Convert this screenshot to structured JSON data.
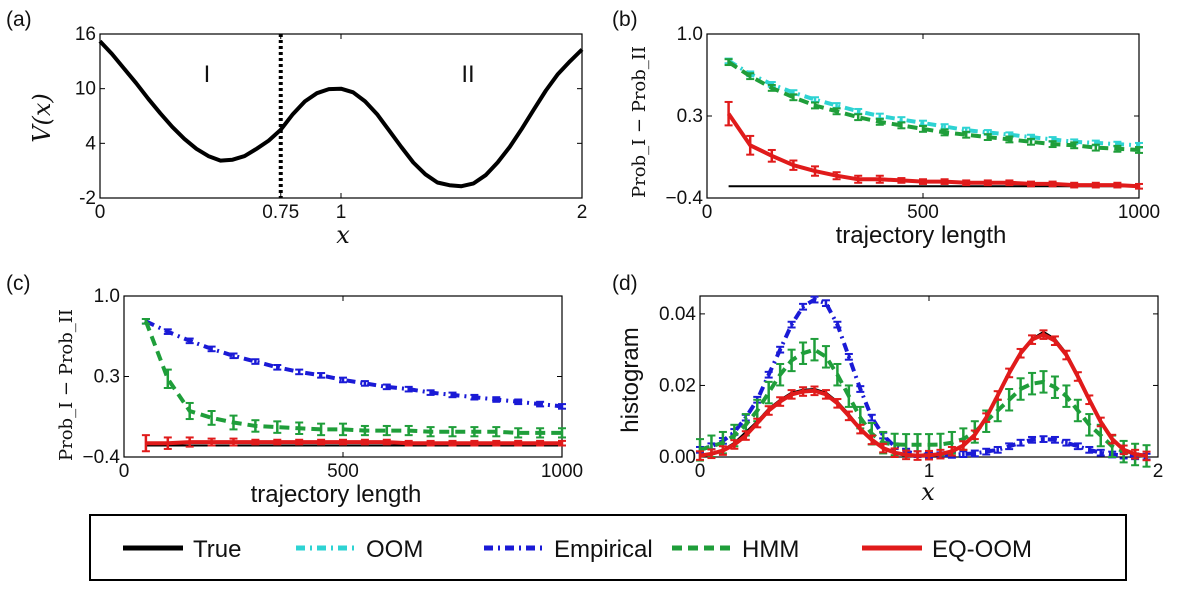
{
  "legend": {
    "entries": [
      {
        "label": "True",
        "color": "#000000",
        "dash": "solid"
      },
      {
        "label": "OOM",
        "color": "#2ed3d3",
        "dash": "dashdot"
      },
      {
        "label": "Empirical",
        "color": "#1a1ad6",
        "dash": "dashdot"
      },
      {
        "label": "HMM",
        "color": "#1f9e3a",
        "dash": "dashed"
      },
      {
        "label": "EQ-OOM",
        "color": "#e01b1b",
        "dash": "solid"
      }
    ]
  },
  "chart_data": [
    {
      "panel": "(a)",
      "type": "line",
      "xlabel": "x",
      "ylabel": "V(x)",
      "xlim": [
        0,
        2
      ],
      "ylim": [
        -2,
        16
      ],
      "xticks": [
        "0",
        "0.75",
        "1",
        "2"
      ],
      "xtick_values": [
        0,
        0.75,
        1,
        2
      ],
      "yticks": [
        "-2",
        "4",
        "10",
        "16"
      ],
      "ytick_values": [
        -2,
        4,
        10,
        16
      ],
      "annotations": [
        "I",
        "II"
      ],
      "divider_x": 0.75,
      "series": [
        {
          "color": "#000000",
          "x": [
            0,
            0.05,
            0.1,
            0.15,
            0.2,
            0.25,
            0.3,
            0.35,
            0.4,
            0.45,
            0.5,
            0.55,
            0.6,
            0.65,
            0.7,
            0.75,
            0.8,
            0.85,
            0.9,
            0.95,
            1.0,
            1.05,
            1.1,
            1.15,
            1.2,
            1.25,
            1.3,
            1.35,
            1.4,
            1.45,
            1.5,
            1.55,
            1.6,
            1.65,
            1.7,
            1.75,
            1.8,
            1.85,
            1.9,
            1.95,
            2.0
          ],
          "y": [
            15.2,
            13.8,
            12.2,
            10.6,
            8.9,
            7.3,
            5.8,
            4.5,
            3.4,
            2.6,
            2.1,
            2.2,
            2.6,
            3.4,
            4.3,
            5.5,
            7.2,
            8.6,
            9.5,
            9.95,
            10.0,
            9.6,
            8.6,
            7.2,
            5.4,
            3.6,
            1.9,
            0.6,
            -0.3,
            -0.6,
            -0.7,
            -0.4,
            0.5,
            1.9,
            3.6,
            5.6,
            7.7,
            9.8,
            11.6,
            13.0,
            14.3
          ]
        }
      ]
    },
    {
      "panel": "(b)",
      "type": "line",
      "xlabel": "trajectory length",
      "ylabel": "Prob_I − Prob_II",
      "xlim": [
        0,
        1000
      ],
      "ylim": [
        -0.4,
        1.0
      ],
      "xticks": [
        "0",
        "500",
        "1000"
      ],
      "xtick_values": [
        0,
        500,
        1000
      ],
      "yticks": [
        "−0.4",
        "0.3",
        "1.0"
      ],
      "ytick_values": [
        -0.4,
        0.3,
        1.0
      ],
      "series": [
        {
          "name": "True",
          "color": "#000000",
          "x": [
            50,
            1000
          ],
          "y": [
            -0.3,
            -0.3
          ]
        },
        {
          "name": "OOM",
          "color": "#2ed3d3",
          "x": [
            50,
            100,
            150,
            200,
            250,
            300,
            350,
            400,
            450,
            500,
            550,
            600,
            650,
            700,
            750,
            800,
            850,
            900,
            950,
            1000
          ],
          "y": [
            0.77,
            0.66,
            0.57,
            0.5,
            0.44,
            0.39,
            0.34,
            0.3,
            0.27,
            0.24,
            0.21,
            0.18,
            0.16,
            0.14,
            0.12,
            0.1,
            0.08,
            0.07,
            0.06,
            0.05
          ],
          "err": 0.02
        },
        {
          "name": "HMM",
          "color": "#1f9e3a",
          "x": [
            50,
            100,
            150,
            200,
            250,
            300,
            350,
            400,
            450,
            500,
            550,
            600,
            650,
            700,
            750,
            800,
            850,
            900,
            950,
            1000
          ],
          "y": [
            0.76,
            0.64,
            0.54,
            0.46,
            0.39,
            0.34,
            0.29,
            0.25,
            0.22,
            0.19,
            0.16,
            0.14,
            0.12,
            0.1,
            0.08,
            0.06,
            0.05,
            0.03,
            0.02,
            0.01
          ],
          "err": 0.025
        },
        {
          "name": "EQ-OOM",
          "color": "#e01b1b",
          "x": [
            50,
            100,
            150,
            200,
            250,
            300,
            350,
            400,
            450,
            500,
            550,
            600,
            650,
            700,
            750,
            800,
            850,
            900,
            950,
            1000
          ],
          "y": [
            0.32,
            0.05,
            -0.04,
            -0.12,
            -0.17,
            -0.21,
            -0.24,
            -0.24,
            -0.25,
            -0.26,
            -0.26,
            -0.27,
            -0.27,
            -0.27,
            -0.28,
            -0.28,
            -0.29,
            -0.29,
            -0.29,
            -0.3
          ],
          "err": [
            0.1,
            0.08,
            0.05,
            0.04,
            0.04,
            0.03,
            0.03,
            0.03,
            0.02,
            0.02,
            0.02,
            0.02,
            0.02,
            0.02,
            0.02,
            0.02,
            0.02,
            0.02,
            0.02,
            0.02
          ]
        }
      ]
    },
    {
      "panel": "(c)",
      "type": "line",
      "xlabel": "trajectory length",
      "ylabel": "Prob_I − Prob_II",
      "xlim": [
        0,
        1000
      ],
      "ylim": [
        -0.4,
        1.0
      ],
      "xticks": [
        "0",
        "500",
        "1000"
      ],
      "xtick_values": [
        0,
        500,
        1000
      ],
      "yticks": [
        "−0.4",
        "0.3",
        "1.0"
      ],
      "ytick_values": [
        -0.4,
        0.3,
        1.0
      ],
      "series": [
        {
          "name": "True",
          "color": "#000000",
          "x": [
            50,
            1000
          ],
          "y": [
            -0.3,
            -0.3
          ]
        },
        {
          "name": "Empirical",
          "color": "#1a1ad6",
          "x": [
            50,
            100,
            150,
            200,
            250,
            300,
            350,
            400,
            450,
            500,
            550,
            600,
            650,
            700,
            750,
            800,
            850,
            900,
            950,
            1000
          ],
          "y": [
            0.78,
            0.69,
            0.61,
            0.54,
            0.48,
            0.43,
            0.38,
            0.34,
            0.31,
            0.27,
            0.24,
            0.21,
            0.19,
            0.16,
            0.14,
            0.12,
            0.1,
            0.08,
            0.06,
            0.04
          ],
          "err": 0.02
        },
        {
          "name": "HMM",
          "color": "#1f9e3a",
          "x": [
            50,
            100,
            150,
            200,
            250,
            300,
            350,
            400,
            450,
            500,
            550,
            600,
            650,
            700,
            750,
            800,
            850,
            900,
            950,
            1000
          ],
          "y": [
            0.78,
            0.28,
            0.0,
            -0.06,
            -0.1,
            -0.13,
            -0.14,
            -0.15,
            -0.16,
            -0.16,
            -0.17,
            -0.17,
            -0.17,
            -0.18,
            -0.18,
            -0.18,
            -0.18,
            -0.19,
            -0.19,
            -0.19
          ],
          "err": [
            0.02,
            0.08,
            0.07,
            0.06,
            0.06,
            0.05,
            0.05,
            0.05,
            0.05,
            0.05,
            0.04,
            0.04,
            0.04,
            0.04,
            0.04,
            0.04,
            0.04,
            0.04,
            0.04,
            0.04
          ]
        },
        {
          "name": "EQ-OOM",
          "color": "#e01b1b",
          "x": [
            50,
            100,
            150,
            200,
            250,
            300,
            350,
            400,
            450,
            500,
            550,
            600,
            650,
            700,
            750,
            800,
            850,
            900,
            950,
            1000
          ],
          "y": [
            -0.28,
            -0.28,
            -0.27,
            -0.27,
            -0.27,
            -0.27,
            -0.27,
            -0.27,
            -0.27,
            -0.27,
            -0.27,
            -0.27,
            -0.28,
            -0.28,
            -0.28,
            -0.28,
            -0.28,
            -0.28,
            -0.28,
            -0.28
          ],
          "err": [
            0.07,
            0.05,
            0.04,
            0.03,
            0.03,
            0.02,
            0.02,
            0.02,
            0.02,
            0.02,
            0.02,
            0.02,
            0.02,
            0.02,
            0.02,
            0.02,
            0.02,
            0.02,
            0.02,
            0.02
          ]
        }
      ]
    },
    {
      "panel": "(d)",
      "type": "line",
      "xlabel": "x",
      "ylabel": "histogram",
      "xlim": [
        0,
        2
      ],
      "ylim": [
        0,
        0.045
      ],
      "xticks": [
        "0",
        "1",
        "2"
      ],
      "xtick_values": [
        0,
        1,
        2
      ],
      "yticks": [
        "0.00",
        "0.02",
        "0.04"
      ],
      "ytick_values": [
        0,
        0.02,
        0.04
      ],
      "series": [
        {
          "name": "True",
          "color": "#000000",
          "x": [
            0,
            0.05,
            0.1,
            0.15,
            0.2,
            0.25,
            0.3,
            0.35,
            0.4,
            0.45,
            0.5,
            0.55,
            0.6,
            0.65,
            0.7,
            0.75,
            0.8,
            0.85,
            0.9,
            0.95,
            1.0,
            1.05,
            1.1,
            1.15,
            1.2,
            1.25,
            1.3,
            1.35,
            1.4,
            1.45,
            1.5,
            1.55,
            1.6,
            1.65,
            1.7,
            1.75,
            1.8,
            1.85,
            1.9,
            1.95
          ],
          "y": [
            0.0005,
            0.001,
            0.002,
            0.004,
            0.007,
            0.01,
            0.0135,
            0.016,
            0.018,
            0.0188,
            0.019,
            0.018,
            0.0155,
            0.012,
            0.008,
            0.005,
            0.0025,
            0.0012,
            0.0006,
            0.0004,
            0.0005,
            0.0008,
            0.0015,
            0.003,
            0.006,
            0.011,
            0.017,
            0.023,
            0.029,
            0.033,
            0.035,
            0.033,
            0.029,
            0.023,
            0.016,
            0.01,
            0.005,
            0.002,
            0.0008,
            0.0003
          ]
        },
        {
          "name": "Empirical",
          "color": "#1a1ad6",
          "x": [
            0,
            0.05,
            0.1,
            0.15,
            0.2,
            0.25,
            0.3,
            0.35,
            0.4,
            0.45,
            0.5,
            0.55,
            0.6,
            0.65,
            0.7,
            0.75,
            0.8,
            0.85,
            0.9,
            0.95,
            1.0,
            1.05,
            1.1,
            1.15,
            1.2,
            1.25,
            1.3,
            1.35,
            1.4,
            1.45,
            1.5,
            1.55,
            1.6,
            1.65,
            1.7,
            1.75,
            1.8,
            1.85,
            1.9,
            1.95
          ],
          "y": [
            0.002,
            0.003,
            0.0045,
            0.007,
            0.011,
            0.016,
            0.023,
            0.03,
            0.037,
            0.042,
            0.044,
            0.043,
            0.037,
            0.028,
            0.019,
            0.011,
            0.006,
            0.003,
            0.0015,
            0.0008,
            0.0006,
            0.0005,
            0.0006,
            0.0008,
            0.001,
            0.0015,
            0.002,
            0.003,
            0.004,
            0.0048,
            0.005,
            0.0048,
            0.004,
            0.003,
            0.002,
            0.0012,
            0.0007,
            0.0004,
            0.0002,
            0.0001
          ],
          "err": 0.0008
        },
        {
          "name": "HMM",
          "color": "#1f9e3a",
          "x": [
            0,
            0.05,
            0.1,
            0.15,
            0.2,
            0.25,
            0.3,
            0.35,
            0.4,
            0.45,
            0.5,
            0.55,
            0.6,
            0.65,
            0.7,
            0.75,
            0.8,
            0.85,
            0.9,
            0.95,
            1.0,
            1.05,
            1.1,
            1.15,
            1.2,
            1.25,
            1.3,
            1.35,
            1.4,
            1.45,
            1.5,
            1.55,
            1.6,
            1.65,
            1.7,
            1.75,
            1.8,
            1.85,
            1.9,
            1.95
          ],
          "y": [
            0.002,
            0.003,
            0.004,
            0.006,
            0.009,
            0.013,
            0.018,
            0.023,
            0.027,
            0.029,
            0.03,
            0.028,
            0.023,
            0.017,
            0.011,
            0.0065,
            0.004,
            0.0035,
            0.0034,
            0.0034,
            0.0034,
            0.0035,
            0.004,
            0.005,
            0.007,
            0.01,
            0.013,
            0.016,
            0.019,
            0.0205,
            0.021,
            0.0195,
            0.017,
            0.013,
            0.009,
            0.006,
            0.003,
            0.0015,
            0.0007,
            0.0003
          ],
          "err": 0.003
        },
        {
          "name": "EQ-OOM",
          "color": "#e01b1b",
          "x": [
            0,
            0.05,
            0.1,
            0.15,
            0.2,
            0.25,
            0.3,
            0.35,
            0.4,
            0.45,
            0.5,
            0.55,
            0.6,
            0.65,
            0.7,
            0.75,
            0.8,
            0.85,
            0.9,
            0.95,
            1.0,
            1.05,
            1.1,
            1.15,
            1.2,
            1.25,
            1.3,
            1.35,
            1.4,
            1.45,
            1.5,
            1.55,
            1.6,
            1.65,
            1.7,
            1.75,
            1.8,
            1.85,
            1.9,
            1.95
          ],
          "y": [
            0.0004,
            0.0009,
            0.0018,
            0.0035,
            0.006,
            0.0095,
            0.013,
            0.0155,
            0.0175,
            0.0183,
            0.0185,
            0.0175,
            0.015,
            0.0115,
            0.0078,
            0.0048,
            0.0025,
            0.0012,
            0.0006,
            0.0004,
            0.0005,
            0.0008,
            0.0016,
            0.0032,
            0.0062,
            0.011,
            0.0172,
            0.0235,
            0.029,
            0.0328,
            0.0342,
            0.0325,
            0.0285,
            0.0225,
            0.016,
            0.0098,
            0.005,
            0.002,
            0.0008,
            0.0003
          ],
          "err": 0.0012
        }
      ]
    }
  ]
}
